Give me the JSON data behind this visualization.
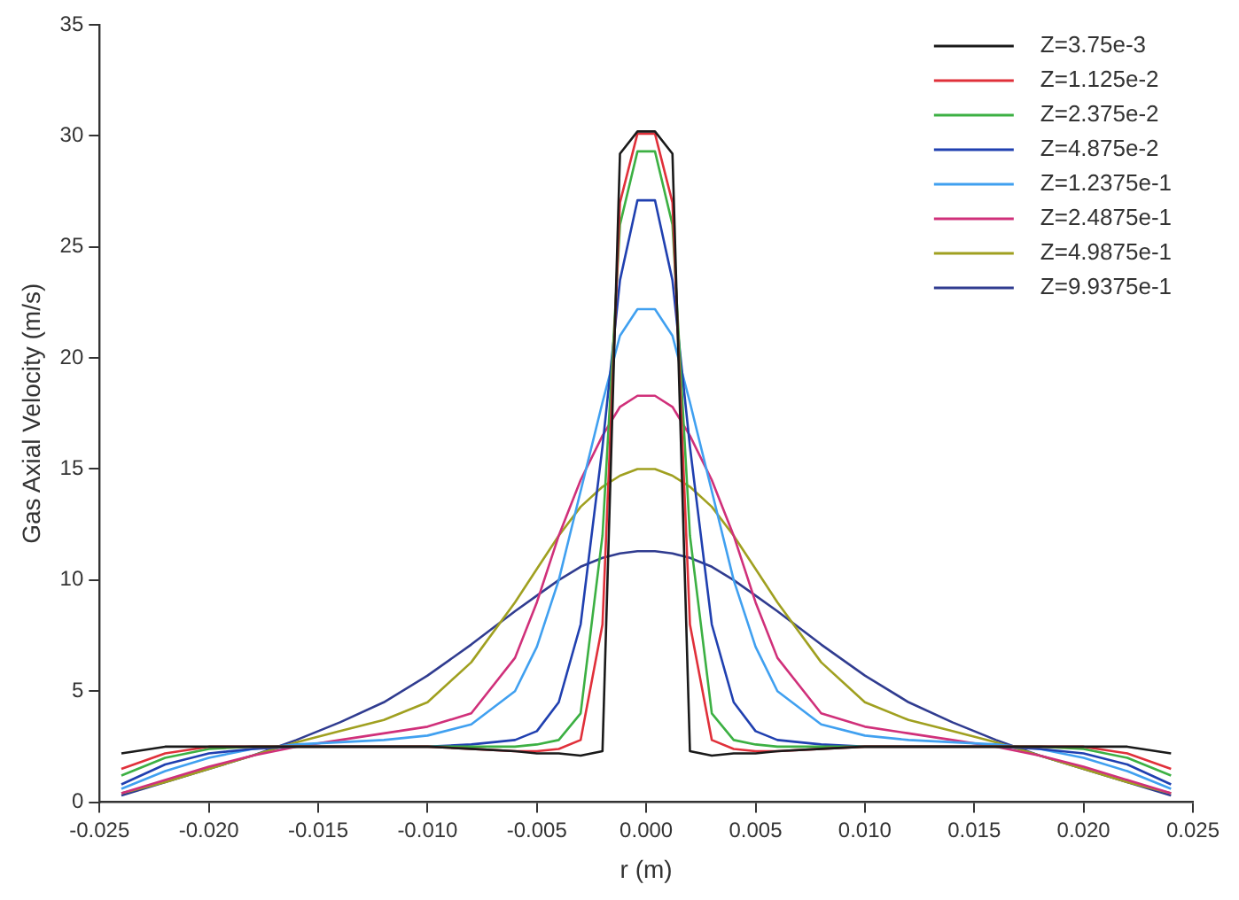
{
  "chart_data": {
    "type": "line",
    "xlabel": "r (m)",
    "ylabel": "Gas Axial Velocity (m/s)",
    "x": [
      -0.024,
      -0.022,
      -0.02,
      -0.018,
      -0.016,
      -0.014,
      -0.012,
      -0.01,
      -0.008,
      -0.006,
      -0.005,
      -0.004,
      -0.003,
      -0.002,
      -0.0012,
      -0.0004,
      0.0004,
      0.0012,
      0.002,
      0.003,
      0.004,
      0.005,
      0.006,
      0.008,
      0.01,
      0.012,
      0.014,
      0.016,
      0.018,
      0.02,
      0.022,
      0.024
    ],
    "series": [
      {
        "name": "Z=3.75e-3",
        "color": "#1a1a1a",
        "values": [
          2.2,
          2.5,
          2.5,
          2.5,
          2.5,
          2.5,
          2.5,
          2.5,
          2.4,
          2.3,
          2.2,
          2.2,
          2.1,
          2.3,
          29.2,
          30.2,
          30.2,
          29.2,
          2.3,
          2.1,
          2.2,
          2.2,
          2.3,
          2.4,
          2.5,
          2.5,
          2.5,
          2.5,
          2.5,
          2.5,
          2.5,
          2.2
        ]
      },
      {
        "name": "Z=1.125e-2",
        "color": "#e0303a",
        "values": [
          1.5,
          2.2,
          2.5,
          2.5,
          2.5,
          2.5,
          2.5,
          2.5,
          2.4,
          2.3,
          2.3,
          2.4,
          2.8,
          8,
          27,
          30.1,
          30.1,
          27,
          8,
          2.8,
          2.4,
          2.3,
          2.3,
          2.4,
          2.5,
          2.5,
          2.5,
          2.5,
          2.5,
          2.5,
          2.2,
          1.5
        ]
      },
      {
        "name": "Z=2.375e-2",
        "color": "#3cb043",
        "values": [
          1.2,
          2.0,
          2.4,
          2.5,
          2.5,
          2.5,
          2.5,
          2.5,
          2.5,
          2.5,
          2.6,
          2.8,
          4,
          12,
          26,
          29.3,
          29.3,
          26,
          12,
          4,
          2.8,
          2.6,
          2.5,
          2.5,
          2.5,
          2.5,
          2.5,
          2.5,
          2.5,
          2.4,
          2.0,
          1.2
        ]
      },
      {
        "name": "Z=4.875e-2",
        "color": "#2040b0",
        "values": [
          0.8,
          1.7,
          2.2,
          2.4,
          2.5,
          2.5,
          2.5,
          2.5,
          2.6,
          2.8,
          3.2,
          4.5,
          8,
          16,
          23.5,
          27.1,
          27.1,
          23.5,
          16,
          8,
          4.5,
          3.2,
          2.8,
          2.6,
          2.5,
          2.5,
          2.5,
          2.5,
          2.4,
          2.2,
          1.7,
          0.8
        ]
      },
      {
        "name": "Z=1.2375e-1",
        "color": "#40a0f0",
        "values": [
          0.6,
          1.4,
          2.0,
          2.4,
          2.6,
          2.7,
          2.8,
          3.0,
          3.5,
          5,
          7,
          10,
          14,
          18,
          21,
          22.2,
          22.2,
          21,
          18,
          14,
          10,
          7,
          5,
          3.5,
          3.0,
          2.8,
          2.7,
          2.6,
          2.4,
          2.0,
          1.4,
          0.6
        ]
      },
      {
        "name": "Z=2.4875e-1",
        "color": "#d0307a",
        "values": [
          0.4,
          1.0,
          1.6,
          2.1,
          2.5,
          2.8,
          3.1,
          3.4,
          4,
          6.5,
          9,
          12,
          14.5,
          16.5,
          17.8,
          18.3,
          18.3,
          17.8,
          16.5,
          14.5,
          12,
          9,
          6.5,
          4,
          3.4,
          3.1,
          2.8,
          2.5,
          2.1,
          1.6,
          1.0,
          0.4
        ]
      },
      {
        "name": "Z=4.9875e-1",
        "color": "#a0a020",
        "values": [
          0.4,
          0.9,
          1.5,
          2.1,
          2.7,
          3.2,
          3.7,
          4.5,
          6.3,
          9,
          10.5,
          12,
          13.3,
          14.2,
          14.7,
          15.0,
          15.0,
          14.7,
          14.2,
          13.3,
          12,
          10.5,
          9,
          6.3,
          4.5,
          3.7,
          3.2,
          2.7,
          2.1,
          1.5,
          0.9,
          0.4
        ]
      },
      {
        "name": "Z=9.9375e-1",
        "color": "#303c90",
        "values": [
          0.3,
          0.9,
          1.5,
          2.1,
          2.8,
          3.6,
          4.5,
          5.7,
          7.1,
          8.6,
          9.3,
          10.0,
          10.6,
          11.0,
          11.2,
          11.3,
          11.3,
          11.2,
          11.0,
          10.6,
          10.0,
          9.3,
          8.6,
          7.1,
          5.7,
          4.5,
          3.6,
          2.8,
          2.1,
          1.5,
          0.9,
          0.3
        ]
      }
    ],
    "xlim": [
      -0.025,
      0.025
    ],
    "xticks": [
      {
        "value": -0.025,
        "label": "-0.025"
      },
      {
        "value": -0.02,
        "label": "-0.020"
      },
      {
        "value": -0.015,
        "label": "-0.015"
      },
      {
        "value": -0.01,
        "label": "-0.010"
      },
      {
        "value": -0.005,
        "label": "-0.005"
      },
      {
        "value": 0,
        "label": "0.000"
      },
      {
        "value": 0.005,
        "label": "0.005"
      },
      {
        "value": 0.01,
        "label": "0.010"
      },
      {
        "value": 0.015,
        "label": "0.015"
      },
      {
        "value": 0.02,
        "label": "0.020"
      },
      {
        "value": 0.025,
        "label": "0.025"
      }
    ],
    "ylim": [
      0,
      35
    ],
    "yticks": [
      0,
      5,
      10,
      15,
      20,
      25,
      30,
      35
    ],
    "grid": false,
    "legend": "top right",
    "marker": "none",
    "line_style": "solid"
  }
}
